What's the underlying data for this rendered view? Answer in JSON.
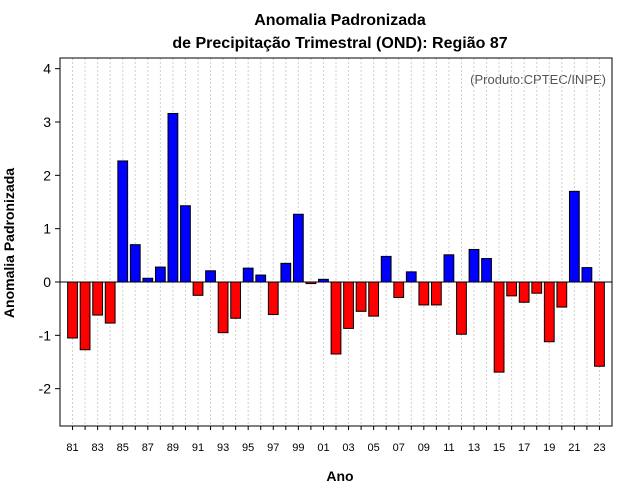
{
  "chart_data": {
    "type": "bar",
    "title": "Anomalia Padronizada",
    "subtitle": "de Precipitação Trimestral (OND): Região 87",
    "credit": "(Produto:CPTEC/INPE)",
    "xlabel": "Ano",
    "ylabel": "Anomalia Padronizada",
    "ylim": [
      -2.7,
      4.2
    ],
    "yticks": [
      -2,
      -1,
      0,
      1,
      2,
      3,
      4
    ],
    "ytick_labels": [
      "-2",
      "-1",
      "0",
      "1",
      "2",
      "3",
      "4"
    ],
    "grid": "vertical dotted",
    "positive_color": "#0000ff",
    "negative_color": "#ff0000",
    "categories": [
      "81",
      "82",
      "83",
      "84",
      "85",
      "86",
      "87",
      "88",
      "89",
      "90",
      "91",
      "92",
      "93",
      "94",
      "95",
      "96",
      "97",
      "98",
      "99",
      "00",
      "01",
      "02",
      "03",
      "04",
      "05",
      "06",
      "07",
      "08",
      "09",
      "10",
      "11",
      "12",
      "13",
      "14",
      "15",
      "16",
      "17",
      "18",
      "19",
      "20",
      "21",
      "22",
      "23"
    ],
    "xtick_labels": [
      "81",
      "83",
      "85",
      "87",
      "89",
      "91",
      "93",
      "95",
      "97",
      "99",
      "01",
      "03",
      "05",
      "07",
      "09",
      "11",
      "13",
      "15",
      "17",
      "19",
      "21",
      "23"
    ],
    "values": [
      -1.05,
      -1.27,
      -0.62,
      -0.77,
      2.27,
      0.7,
      0.07,
      0.28,
      3.16,
      1.43,
      -0.25,
      0.21,
      -0.95,
      -0.68,
      0.26,
      0.13,
      -0.61,
      0.35,
      1.27,
      -0.03,
      0.05,
      -1.35,
      -0.87,
      -0.55,
      -0.64,
      0.48,
      -0.29,
      0.19,
      -0.43,
      -0.43,
      0.51,
      -0.98,
      0.61,
      0.44,
      -1.69,
      -0.26,
      -0.38,
      -0.21,
      -1.12,
      -0.47,
      1.7,
      0.27,
      -1.58
    ]
  }
}
